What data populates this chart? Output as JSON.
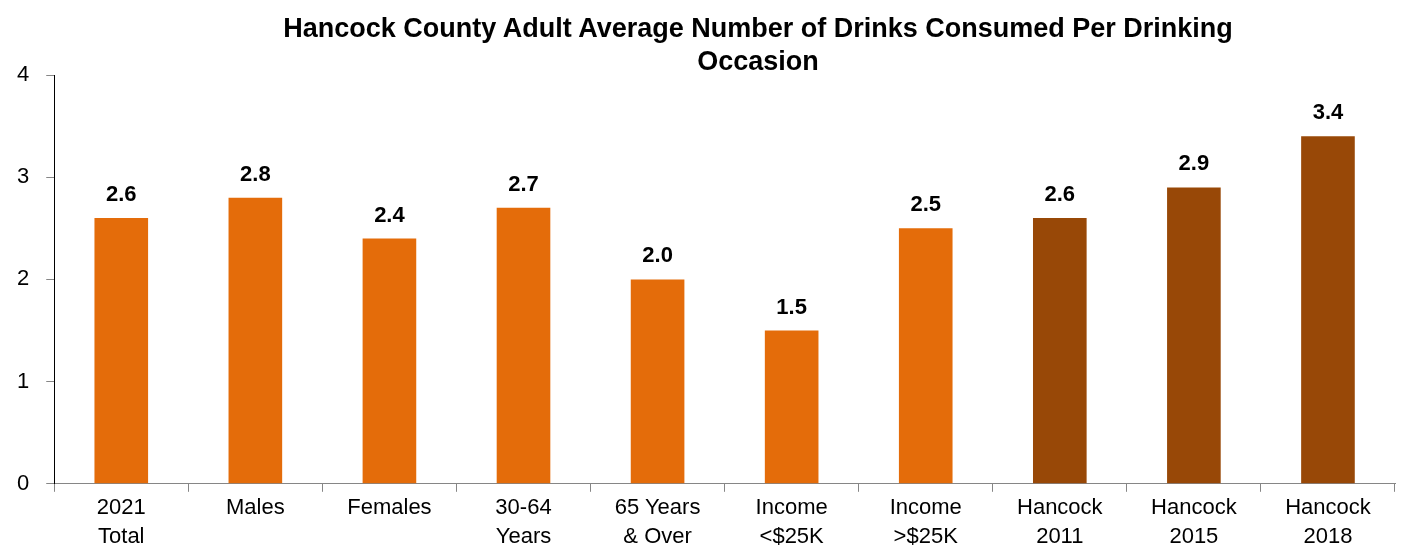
{
  "chart_data": {
    "type": "bar",
    "title": "Hancock County Adult Average Number of Drinks Consumed Per Drinking Occasion",
    "categories": [
      "2021 Total",
      "Males",
      "Females",
      "30-64 Years",
      "65 Years & Over",
      "Income <$25K",
      "Income >$25K",
      "Hancock 2011",
      "Hancock 2015",
      "Hancock 2018"
    ],
    "values": [
      2.6,
      2.8,
      2.4,
      2.7,
      2.0,
      1.5,
      2.5,
      2.6,
      2.9,
      3.4
    ],
    "colors": [
      "#e46c0a",
      "#e46c0a",
      "#e46c0a",
      "#e46c0a",
      "#e46c0a",
      "#e46c0a",
      "#e46c0a",
      "#984807",
      "#984807",
      "#984807"
    ],
    "value_labels": [
      "2.6",
      "2.8",
      "2.4",
      "2.7",
      "2.0",
      "1.5",
      "2.5",
      "2.6",
      "2.9",
      "3.4"
    ],
    "ylim": [
      0,
      4
    ],
    "yticks": [
      0,
      1,
      2,
      3,
      4
    ]
  }
}
